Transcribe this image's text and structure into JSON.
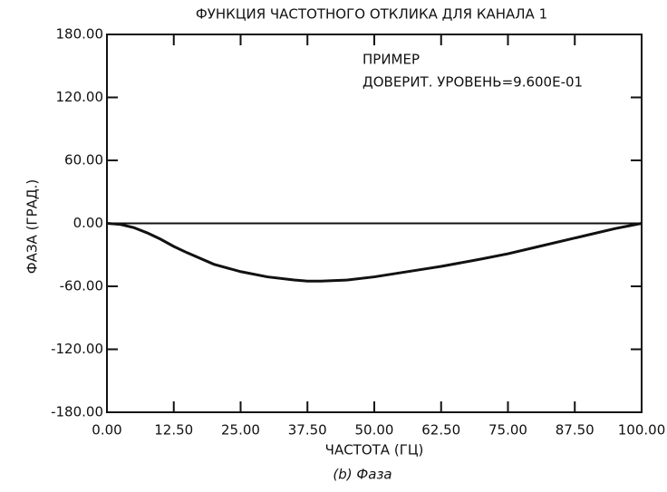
{
  "chart_data": {
    "type": "line",
    "title": "ФУНКЦИЯ ЧАСТОТНОГО ОТКЛИКА ДЛЯ КАНАЛА 1",
    "annotations": [
      "ПРИМЕР",
      "ДОВЕРИТ. УРОВЕНЬ=9.600E-01"
    ],
    "xlabel": "ЧАСТОТА (ГЦ)",
    "ylabel": "ФАЗА (ГРАД.)",
    "caption": "(b) Фаза",
    "x": [
      0,
      2.5,
      5,
      7.5,
      10,
      12.5,
      15,
      20,
      25,
      30,
      35,
      37.5,
      40,
      45,
      50,
      55,
      60,
      62.5,
      70,
      75,
      80,
      87.5,
      90,
      95,
      100
    ],
    "series": [
      {
        "color": "#111111",
        "values": [
          0,
          -1,
          -4,
          -9,
          -15,
          -22,
          -28,
          -39,
          -46,
          -51,
          -54,
          -55,
          -55,
          -54,
          -51,
          -47,
          -43,
          -41,
          -34,
          -29,
          -23,
          -14,
          -11,
          -5,
          0
        ]
      }
    ],
    "zero_line": true,
    "xlim": [
      0,
      100
    ],
    "xticks": [
      {
        "value": 0,
        "label": "0.00"
      },
      {
        "value": 12.5,
        "label": "12.50"
      },
      {
        "value": 25,
        "label": "25.00"
      },
      {
        "value": 37.5,
        "label": "37.50"
      },
      {
        "value": 50,
        "label": "50.00"
      },
      {
        "value": 62.5,
        "label": "62.50"
      },
      {
        "value": 75,
        "label": "75.00"
      },
      {
        "value": 87.5,
        "label": "87.50"
      },
      {
        "value": 100,
        "label": "100.00"
      }
    ],
    "ylim": [
      -180,
      180
    ],
    "yticks": [
      {
        "value": -180,
        "label": "-180.00"
      },
      {
        "value": -120,
        "label": "-120.00"
      },
      {
        "value": -60,
        "label": "-60.00"
      },
      {
        "value": 0,
        "label": "0.00"
      },
      {
        "value": 60,
        "label": "60.00"
      },
      {
        "value": 120,
        "label": "120.00"
      },
      {
        "value": 180,
        "label": "180.00"
      }
    ]
  }
}
